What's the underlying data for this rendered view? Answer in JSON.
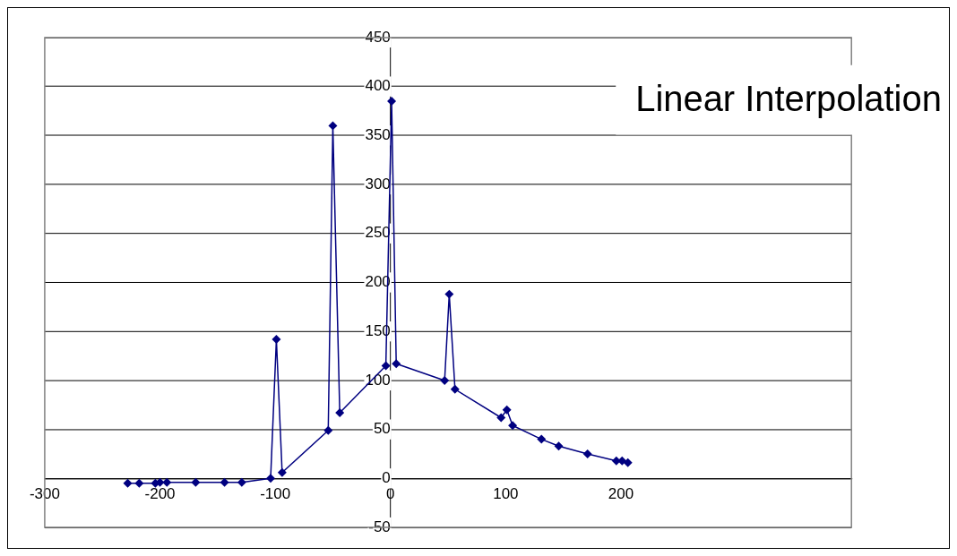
{
  "chart_data": {
    "type": "line",
    "title": "Linear Interpolation",
    "x": [
      -228,
      -218,
      -204,
      -200,
      -194,
      -169,
      -144,
      -129,
      -104,
      -99,
      -94,
      -54,
      -50,
      -44,
      -4,
      1,
      5,
      47,
      51,
      56,
      96,
      101,
      106,
      131,
      146,
      171,
      196,
      201,
      206
    ],
    "series": [
      {
        "color": "#000080",
        "values": [
          -5,
          -5,
          -5,
          -4,
          -4,
          -4,
          -4,
          -4,
          0,
          142,
          6,
          49,
          360,
          67,
          115,
          385,
          117,
          100,
          188,
          91,
          62,
          70,
          54,
          40,
          33,
          25,
          18,
          18,
          16
        ]
      }
    ],
    "xlim": [
      -300,
      400
    ],
    "xticks": [
      -300,
      -200,
      -100,
      0,
      100,
      200
    ],
    "ylim": [
      -50,
      450
    ],
    "yticks": [
      -50,
      0,
      50,
      100,
      150,
      200,
      250,
      300,
      350,
      400,
      450
    ],
    "grid": "y",
    "legend": false,
    "marker": "diamond",
    "line_style": "solid"
  }
}
